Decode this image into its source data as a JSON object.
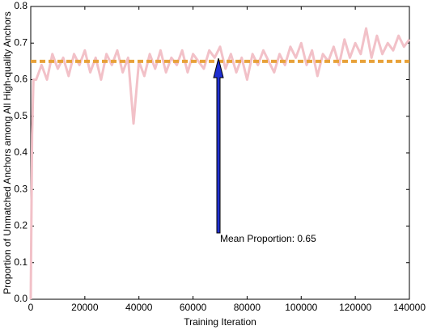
{
  "chart_data": {
    "type": "line",
    "xlabel": "Training Iteration",
    "ylabel": "Proportion of Unmatched Anchors among All High-quality Anchors",
    "annotation": "Mean Proportion: 0.65",
    "color": "#f2c1c8",
    "mean_line": {
      "value": 0.65,
      "color": "#e8a23a"
    },
    "x": [
      0,
      500,
      1000,
      2000,
      4000,
      6000,
      8000,
      10000,
      12000,
      14000,
      16000,
      18000,
      20000,
      22000,
      24000,
      26000,
      28000,
      30000,
      32000,
      34000,
      36000,
      38000,
      40000,
      42000,
      44000,
      46000,
      48000,
      50000,
      52000,
      54000,
      56000,
      58000,
      60000,
      62000,
      64000,
      66000,
      68000,
      70000,
      72000,
      74000,
      76000,
      78000,
      80000,
      82000,
      84000,
      86000,
      88000,
      90000,
      92000,
      94000,
      96000,
      98000,
      100000,
      102000,
      104000,
      106000,
      108000,
      110000,
      112000,
      114000,
      116000,
      118000,
      120000,
      122000,
      124000,
      126000,
      128000,
      130000,
      132000,
      134000,
      136000,
      138000,
      140000
    ],
    "values": [
      0,
      0.45,
      0.6,
      0.6,
      0.64,
      0.6,
      0.67,
      0.63,
      0.66,
      0.61,
      0.67,
      0.64,
      0.68,
      0.62,
      0.66,
      0.6,
      0.67,
      0.64,
      0.68,
      0.62,
      0.66,
      0.48,
      0.65,
      0.61,
      0.67,
      0.63,
      0.68,
      0.62,
      0.66,
      0.64,
      0.68,
      0.62,
      0.67,
      0.65,
      0.63,
      0.68,
      0.66,
      0.69,
      0.63,
      0.67,
      0.62,
      0.66,
      0.6,
      0.67,
      0.64,
      0.68,
      0.65,
      0.62,
      0.67,
      0.64,
      0.69,
      0.66,
      0.7,
      0.64,
      0.68,
      0.61,
      0.67,
      0.65,
      0.69,
      0.64,
      0.71,
      0.66,
      0.7,
      0.67,
      0.74,
      0.66,
      0.72,
      0.67,
      0.7,
      0.68,
      0.72,
      0.69,
      0.71
    ],
    "xlim": [
      0,
      140000
    ],
    "xticks": [
      0,
      20000,
      40000,
      60000,
      80000,
      100000,
      120000,
      140000
    ],
    "ylim": [
      0,
      0.8
    ],
    "yticks": [
      {
        "value": 0,
        "label": "0.0"
      },
      0.1,
      0.2,
      0.3,
      0.4,
      0.5,
      0.6,
      0.7,
      0.8
    ]
  }
}
